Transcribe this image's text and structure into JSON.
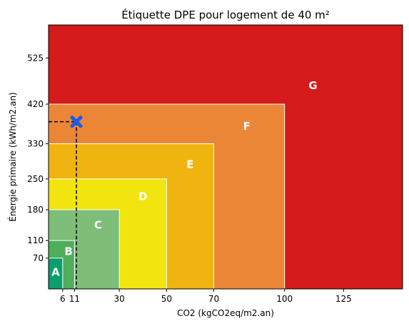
{
  "chart_data": {
    "type": "area",
    "title": "Étiquette DPE pour logement de 40 m²",
    "xlabel": "CO2 (kgCO2eq/m2.an)",
    "ylabel": "Énergie primaire (kWh/m2.an)",
    "xlim": [
      0,
      150
    ],
    "ylim": [
      0,
      600
    ],
    "xticks": [
      6,
      11,
      30,
      50,
      70,
      100,
      125
    ],
    "yticks": [
      70,
      110,
      180,
      250,
      330,
      420,
      525
    ],
    "classes": [
      {
        "name": "G",
        "co2_max": 150,
        "energy_max": 600,
        "color": "#d41a1a"
      },
      {
        "name": "F",
        "co2_max": 100,
        "energy_max": 420,
        "color": "#ec8637"
      },
      {
        "name": "E",
        "co2_max": 70,
        "energy_max": 330,
        "color": "#f0b410"
      },
      {
        "name": "D",
        "co2_max": 50,
        "energy_max": 250,
        "color": "#f2e40e"
      },
      {
        "name": "C",
        "co2_max": 30,
        "energy_max": 180,
        "color": "#7ebe78"
      },
      {
        "name": "B",
        "co2_max": 11,
        "energy_max": 110,
        "color": "#4eae5a"
      },
      {
        "name": "A",
        "co2_max": 6,
        "energy_max": 70,
        "color": "#0a9f6c"
      }
    ],
    "point": {
      "x": 11.8,
      "y": 380,
      "color": "#1a5cf0"
    }
  }
}
